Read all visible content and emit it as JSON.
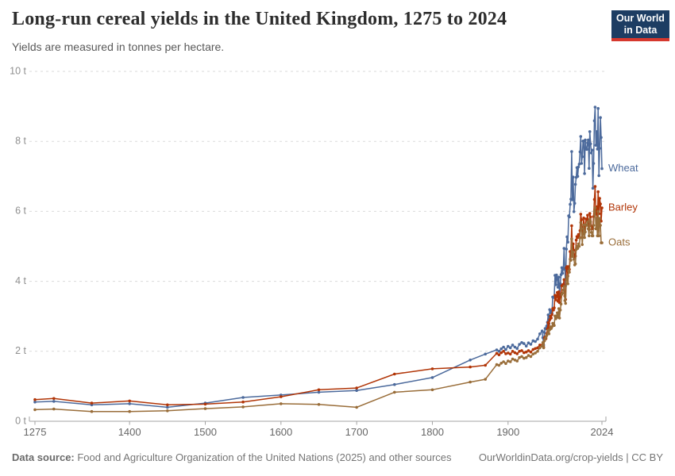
{
  "header": {
    "title": "Long-run cereal yields in the United Kingdom, 1275 to 2024",
    "subtitle": "Yields are measured in tonnes per hectare."
  },
  "logo": {
    "line1": "Our World",
    "line2": "in Data",
    "bg": "#1d3d63",
    "stripe": "#d6382e"
  },
  "footer": {
    "source_label": "Data source:",
    "source_text": " Food and Agriculture Organization of the United Nations (2025) and other sources",
    "link": "OurWorldinData.org/crop-yields | CC BY"
  },
  "chart_data": {
    "type": "line",
    "title": "Long-run cereal yields in the United Kingdom, 1275 to 2024",
    "xlabel": "",
    "ylabel": "tonnes per hectare",
    "xlim": [
      1275,
      2024
    ],
    "ylim": [
      0,
      10
    ],
    "grid": "dashed-horizontal",
    "legend": "line-end-labels",
    "x_ticks": [
      1275,
      1400,
      1500,
      1600,
      1700,
      1800,
      1900,
      2024
    ],
    "y_ticks": [
      0,
      2,
      4,
      6,
      8,
      10
    ],
    "y_tick_suffix": " t",
    "axis_colors": {
      "grid": "#dadada",
      "axis": "#a3a3a3",
      "y_label": "#8f8f8f",
      "x_label": "#666666"
    },
    "years": [
      1275,
      1300,
      1350,
      1400,
      1450,
      1500,
      1550,
      1600,
      1650,
      1700,
      1750,
      1800,
      1850,
      1870,
      1885,
      1888,
      1891,
      1894,
      1897,
      1900,
      1903,
      1906,
      1909,
      1912,
      1915,
      1918,
      1921,
      1924,
      1927,
      1930,
      1933,
      1936,
      1939,
      1942,
      1945,
      1946,
      1947,
      1948,
      1949,
      1950,
      1951,
      1952,
      1953,
      1954,
      1955,
      1956,
      1957,
      1958,
      1959,
      1960,
      1961,
      1962,
      1963,
      1964,
      1965,
      1966,
      1967,
      1968,
      1969,
      1970,
      1971,
      1972,
      1973,
      1974,
      1975,
      1976,
      1977,
      1978,
      1979,
      1980,
      1981,
      1982,
      1983,
      1984,
      1985,
      1986,
      1987,
      1988,
      1989,
      1990,
      1991,
      1992,
      1993,
      1994,
      1995,
      1996,
      1997,
      1998,
      1999,
      2000,
      2001,
      2002,
      2003,
      2004,
      2005,
      2006,
      2007,
      2008,
      2009,
      2010,
      2011,
      2012,
      2013,
      2014,
      2015,
      2016,
      2017,
      2018,
      2019,
      2020,
      2021,
      2022,
      2023,
      2024
    ],
    "series": [
      {
        "name": "Wheat",
        "color": "#4C6A9C",
        "values": [
          0.55,
          0.57,
          0.47,
          0.5,
          0.4,
          0.52,
          0.68,
          0.75,
          0.83,
          0.88,
          1.05,
          1.25,
          1.75,
          1.92,
          2.04,
          2.0,
          2.07,
          2.12,
          2.05,
          2.14,
          2.1,
          2.18,
          2.12,
          2.08,
          2.2,
          2.25,
          2.22,
          2.15,
          2.24,
          2.2,
          2.3,
          2.28,
          2.35,
          2.5,
          2.58,
          2.39,
          2.18,
          2.54,
          2.65,
          2.64,
          2.72,
          2.83,
          3.04,
          2.79,
          3.19,
          3.16,
          3.1,
          3.09,
          3.55,
          3.55,
          3.54,
          4.17,
          3.9,
          4.18,
          4.06,
          3.83,
          4.12,
          3.54,
          3.93,
          4.19,
          4.39,
          4.23,
          4.37,
          4.94,
          4.34,
          3.87,
          4.92,
          5.27,
          5.12,
          5.87,
          5.84,
          6.2,
          6.35,
          7.71,
          6.33,
          6.98,
          5.99,
          6.23,
          6.77,
          6.97,
          7.25,
          7.0,
          7.27,
          7.35,
          7.7,
          8.14,
          7.37,
          7.56,
          8.01,
          8.01,
          7.08,
          8.04,
          7.78,
          7.77,
          7.96,
          8.04,
          7.23,
          8.28,
          7.93,
          7.67,
          7.75,
          6.66,
          7.37,
          8.59,
          8.98,
          7.89,
          8.28,
          7.78,
          8.94,
          7.02,
          7.8,
          8.68,
          8.11,
          7.22
        ]
      },
      {
        "name": "Barley",
        "color": "#B13507",
        "values": [
          0.62,
          0.65,
          0.52,
          0.58,
          0.47,
          0.49,
          0.55,
          0.7,
          0.9,
          0.95,
          1.35,
          1.5,
          1.55,
          1.6,
          1.94,
          1.9,
          1.96,
          2.0,
          1.93,
          1.95,
          1.92,
          2.0,
          1.96,
          1.93,
          2.0,
          2.02,
          1.96,
          1.98,
          2.02,
          1.98,
          2.05,
          2.08,
          2.1,
          2.18,
          2.18,
          2.2,
          2.12,
          2.38,
          2.41,
          2.36,
          2.5,
          2.64,
          2.82,
          2.68,
          2.9,
          3.0,
          2.95,
          3.05,
          3.22,
          3.18,
          3.24,
          3.6,
          3.47,
          3.56,
          3.68,
          3.43,
          3.7,
          3.39,
          3.55,
          3.64,
          3.87,
          3.9,
          3.91,
          4.05,
          3.58,
          3.48,
          4.38,
          4.42,
          4.15,
          4.42,
          4.34,
          4.85,
          4.84,
          5.59,
          4.96,
          5.07,
          4.89,
          4.68,
          4.72,
          5.18,
          5.28,
          5.25,
          5.34,
          5.26,
          5.45,
          5.92,
          5.76,
          5.26,
          5.53,
          5.81,
          5.45,
          5.59,
          5.78,
          5.75,
          5.89,
          5.65,
          5.48,
          5.94,
          5.84,
          5.58,
          5.5,
          5.51,
          5.85,
          6.34,
          6.71,
          5.92,
          6.13,
          5.65,
          6.56,
          5.93,
          6.37,
          6.21,
          5.72,
          6.1
        ]
      },
      {
        "name": "Oats",
        "color": "#996D39",
        "values": [
          0.33,
          0.35,
          0.28,
          0.28,
          0.3,
          0.36,
          0.41,
          0.5,
          0.48,
          0.4,
          0.83,
          0.9,
          1.12,
          1.2,
          1.62,
          1.6,
          1.66,
          1.7,
          1.65,
          1.72,
          1.7,
          1.78,
          1.75,
          1.72,
          1.82,
          1.85,
          1.8,
          1.82,
          1.88,
          1.85,
          1.92,
          1.95,
          2.0,
          2.1,
          2.15,
          2.25,
          2.1,
          2.3,
          2.35,
          2.4,
          2.45,
          2.5,
          2.6,
          2.5,
          2.62,
          2.7,
          2.65,
          2.7,
          2.8,
          2.78,
          2.74,
          3.01,
          2.93,
          3.01,
          3.1,
          2.97,
          3.22,
          2.95,
          3.18,
          3.35,
          3.63,
          3.66,
          3.75,
          3.85,
          3.45,
          3.37,
          4.05,
          4.14,
          3.93,
          4.3,
          4.26,
          4.63,
          4.6,
          5.21,
          4.71,
          4.84,
          4.63,
          4.47,
          4.5,
          4.91,
          5.0,
          4.94,
          5.07,
          5.0,
          5.24,
          5.68,
          5.51,
          5.05,
          5.35,
          5.61,
          5.25,
          5.41,
          5.62,
          5.6,
          5.7,
          5.5,
          5.3,
          5.77,
          5.7,
          5.4,
          5.3,
          5.3,
          5.6,
          6.0,
          6.1,
          5.5,
          5.8,
          5.3,
          6.0,
          5.3,
          5.8,
          5.6,
          5.1,
          5.1
        ]
      }
    ]
  }
}
